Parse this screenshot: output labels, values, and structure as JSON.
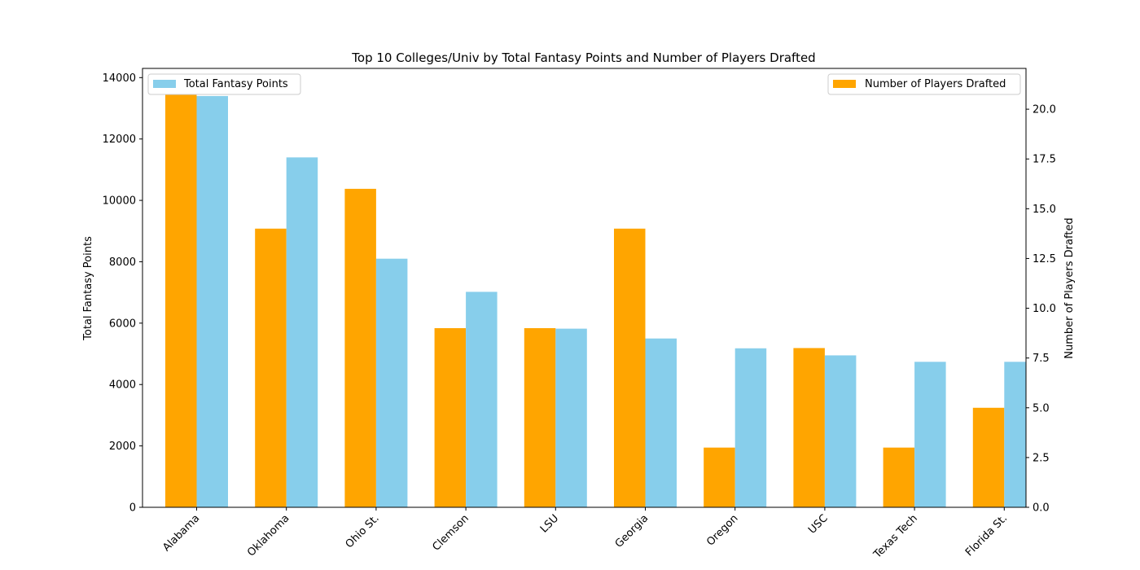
{
  "chart_data": {
    "type": "bar",
    "title": "Top 10 Colleges/Univ by Total Fantasy Points and Number of Players Drafted",
    "categories": [
      "Alabama",
      "Oklahoma",
      "Ohio St.",
      "Clemson",
      "LSU",
      "Georgia",
      "Oregon",
      "USC",
      "Texas Tech",
      "Florida St."
    ],
    "ylabel_left": "Total Fantasy Points",
    "ylabel_right": "Number of Players Drafted",
    "ylim_left": [
      0,
      14300
    ],
    "ylim_right": [
      0,
      22.05
    ],
    "yticks_left": [
      "0",
      "2000",
      "4000",
      "6000",
      "8000",
      "10000",
      "12000",
      "14000"
    ],
    "yticks_right": [
      "0.0",
      "2.5",
      "5.0",
      "7.5",
      "10.0",
      "12.5",
      "15.0",
      "17.5",
      "20.0"
    ],
    "series": [
      {
        "name": "Total Fantasy Points",
        "axis": "left",
        "color": "#87ceeb",
        "values": [
          13400,
          11400,
          8100,
          7020,
          5820,
          5500,
          5180,
          4950,
          4740,
          4740
        ]
      },
      {
        "name": "Number of Players Drafted",
        "axis": "right",
        "color": "#ffa500",
        "values": [
          21,
          14,
          16,
          9,
          9,
          14,
          3,
          8,
          3,
          5
        ]
      }
    ],
    "legend": [
      {
        "position": "top-left",
        "label": "Total Fantasy Points",
        "color": "#87ceeb"
      },
      {
        "position": "top-right",
        "label": "Number of Players Drafted",
        "color": "#ffa500"
      }
    ],
    "grid": false
  }
}
